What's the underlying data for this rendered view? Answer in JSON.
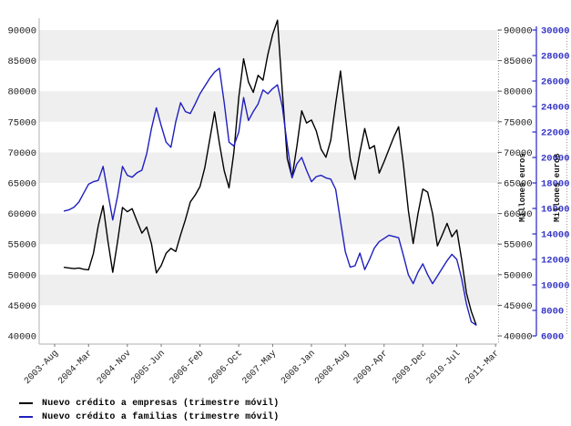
{
  "chart_data": {
    "type": "line",
    "title": "",
    "x_monthly_start": "2003-10",
    "x_monthly_end": "2010-11",
    "x_ticks": [
      {
        "label": "2003-Aug",
        "m": 0
      },
      {
        "label": "2004-Mar",
        "m": 7
      },
      {
        "label": "2004-Nov",
        "m": 15
      },
      {
        "label": "2005-Jun",
        "m": 22
      },
      {
        "label": "2006-Feb",
        "m": 30
      },
      {
        "label": "2006-Oct",
        "m": 38
      },
      {
        "label": "2007-May",
        "m": 45
      },
      {
        "label": "2008-Jan",
        "m": 53
      },
      {
        "label": "2008-Aug",
        "m": 60
      },
      {
        "label": "2009-Apr",
        "m": 68
      },
      {
        "label": "2009-Dec",
        "m": 76
      },
      {
        "label": "2010-Jul",
        "m": 83
      },
      {
        "label": "2011-Mar",
        "m": 91
      }
    ],
    "left_axis": {
      "min": 40000,
      "max": 90000,
      "step": 5000,
      "ticks": [
        40000,
        45000,
        50000,
        55000,
        60000,
        65000,
        70000,
        75000,
        80000,
        85000,
        90000
      ]
    },
    "right_axis_black": {
      "min": 40000,
      "max": 90000,
      "step": 5000,
      "title": "Millones euros",
      "ticks": [
        40000,
        45000,
        50000,
        55000,
        60000,
        65000,
        70000,
        75000,
        80000,
        85000,
        90000
      ]
    },
    "right_axis_blue": {
      "min": 6000,
      "max": 30000,
      "step": 2000,
      "title": "Millones euros",
      "ticks": [
        6000,
        8000,
        10000,
        12000,
        14000,
        16000,
        18000,
        20000,
        22000,
        24000,
        26000,
        28000,
        30000
      ]
    },
    "grid": "horizontal-bands",
    "legend_position": "bottom-left",
    "series": [
      {
        "name": "Nuevo crédito a empresas (trimestre móvil)",
        "color": "#000000",
        "axis": "left",
        "values": [
          51200,
          51100,
          51000,
          51100,
          50900,
          50800,
          53500,
          58000,
          61300,
          55500,
          50400,
          55500,
          61000,
          60300,
          60800,
          58800,
          56800,
          57800,
          55000,
          50300,
          51500,
          53500,
          54300,
          53800,
          56500,
          59000,
          61900,
          63000,
          64400,
          67500,
          72000,
          76600,
          71500,
          67000,
          64200,
          70000,
          79000,
          85300,
          81500,
          79800,
          82600,
          81800,
          86000,
          89300,
          91600,
          80000,
          69000,
          65900,
          71000,
          76800,
          74800,
          75300,
          73500,
          70500,
          69200,
          72000,
          78000,
          83300,
          76000,
          69000,
          65600,
          70000,
          73900,
          70600,
          71100,
          66600,
          68500,
          70500,
          72500,
          74200,
          68000,
          60500,
          55100,
          60000,
          64000,
          63500,
          60000,
          54700,
          56500,
          58400,
          56200,
          57300,
          52500,
          47000,
          44000,
          41800
        ]
      },
      {
        "name": "Nuevo crédito a familias (trimestre móvil)",
        "color": "#1f1fbf",
        "axis": "blue",
        "values": [
          15800,
          15900,
          16100,
          16500,
          17200,
          17900,
          18100,
          18200,
          19300,
          17200,
          15100,
          17000,
          19300,
          18600,
          18450,
          18800,
          19000,
          20300,
          22300,
          23900,
          22500,
          21200,
          20800,
          22800,
          24300,
          23600,
          23450,
          24200,
          25000,
          25600,
          26200,
          26700,
          27000,
          24300,
          21200,
          20900,
          22000,
          24700,
          22900,
          23600,
          24200,
          25300,
          25000,
          25400,
          25700,
          24000,
          21000,
          18400,
          19500,
          20000,
          19000,
          18100,
          18500,
          18600,
          18400,
          18300,
          17500,
          15000,
          12600,
          11400,
          11500,
          12500,
          11200,
          12000,
          12900,
          13400,
          13650,
          13900,
          13800,
          13700,
          12300,
          10800,
          10100,
          11000,
          11650,
          10800,
          10100,
          10700,
          11300,
          11900,
          12400,
          12000,
          10500,
          8500,
          7100,
          6850
        ]
      }
    ]
  },
  "colors": {
    "empresas_line": "#000000",
    "familias_line": "#1f1fbf",
    "blue_axis": "#3434c8",
    "band_gray": "#efefef",
    "frame_gray": "#b0b0b0",
    "tick_text": "#1a1a1a"
  }
}
